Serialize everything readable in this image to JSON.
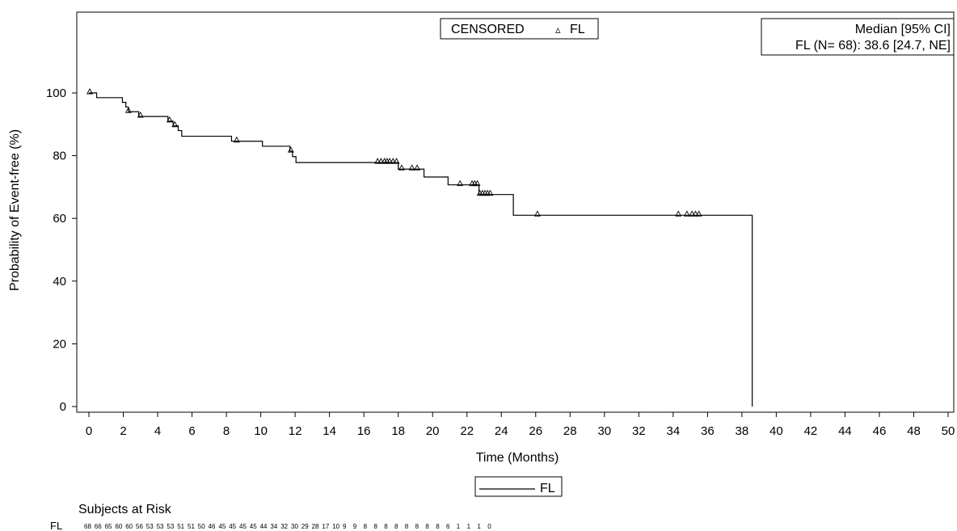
{
  "chart_data": {
    "type": "line",
    "step": true,
    "xlabel": "Time (Months)",
    "ylabel": "Probability of Event-free (%)",
    "xlim": [
      0,
      50
    ],
    "ylim": [
      0,
      100
    ],
    "x_ticks": [
      0,
      2,
      4,
      6,
      8,
      10,
      12,
      14,
      16,
      18,
      20,
      22,
      24,
      26,
      28,
      30,
      32,
      34,
      36,
      38,
      40,
      42,
      44,
      46,
      48,
      50
    ],
    "y_ticks": [
      0,
      20,
      40,
      60,
      80,
      100
    ],
    "grid": false,
    "series": [
      {
        "name": "FL",
        "color": "#000000",
        "steps": [
          [
            0,
            100
          ],
          [
            0.45,
            98.5
          ],
          [
            1.95,
            97.0
          ],
          [
            2.15,
            95.5
          ],
          [
            2.3,
            94.0
          ],
          [
            2.9,
            92.5
          ],
          [
            4.6,
            91.0
          ],
          [
            4.9,
            89.5
          ],
          [
            5.2,
            88.0
          ],
          [
            5.4,
            86.2
          ],
          [
            8.3,
            84.6
          ],
          [
            10.1,
            83.0
          ],
          [
            11.7,
            81.4
          ],
          [
            11.85,
            79.7
          ],
          [
            12.05,
            77.8
          ],
          [
            18.0,
            75.7
          ],
          [
            19.5,
            73.2
          ],
          [
            20.9,
            70.7
          ],
          [
            22.7,
            67.6
          ],
          [
            24.7,
            61.0
          ],
          [
            38.6,
            0
          ]
        ],
        "censored": [
          [
            0.05,
            100
          ],
          [
            2.3,
            94.0
          ],
          [
            3.0,
            92.5
          ],
          [
            4.7,
            91.0
          ],
          [
            5.0,
            89.5
          ],
          [
            8.6,
            84.6
          ],
          [
            11.75,
            81.4
          ],
          [
            16.8,
            77.8
          ],
          [
            17.0,
            77.8
          ],
          [
            17.2,
            77.8
          ],
          [
            17.35,
            77.8
          ],
          [
            17.5,
            77.8
          ],
          [
            17.7,
            77.8
          ],
          [
            17.9,
            77.8
          ],
          [
            18.2,
            75.7
          ],
          [
            18.8,
            75.7
          ],
          [
            19.1,
            75.7
          ],
          [
            21.6,
            70.7
          ],
          [
            22.3,
            70.7
          ],
          [
            22.45,
            70.7
          ],
          [
            22.6,
            70.7
          ],
          [
            22.75,
            67.6
          ],
          [
            22.9,
            67.6
          ],
          [
            23.05,
            67.6
          ],
          [
            23.2,
            67.6
          ],
          [
            23.35,
            67.6
          ],
          [
            26.1,
            61.0
          ],
          [
            34.3,
            61.0
          ],
          [
            34.8,
            61.0
          ],
          [
            35.1,
            61.0
          ],
          [
            35.3,
            61.0
          ],
          [
            35.5,
            61.0
          ]
        ]
      }
    ],
    "censor_legend": {
      "title": "CENSORED",
      "symbol": "▵",
      "label": "FL"
    },
    "median_box": {
      "header": "Median [95% CI]",
      "text": "FL (N= 68): 38.6 [24.7, NE]"
    },
    "line_legend": {
      "label": "FL"
    },
    "risk_table": {
      "title": "Subjects at Risk",
      "row_label": "FL",
      "values": [
        68,
        66,
        65,
        60,
        60,
        56,
        53,
        53,
        53,
        51,
        51,
        50,
        46,
        45,
        45,
        45,
        45,
        44,
        34,
        32,
        30,
        29,
        28,
        17,
        10,
        9,
        9,
        8,
        8,
        8,
        8,
        8,
        8,
        8,
        8,
        6,
        1,
        1,
        1,
        0
      ]
    }
  }
}
